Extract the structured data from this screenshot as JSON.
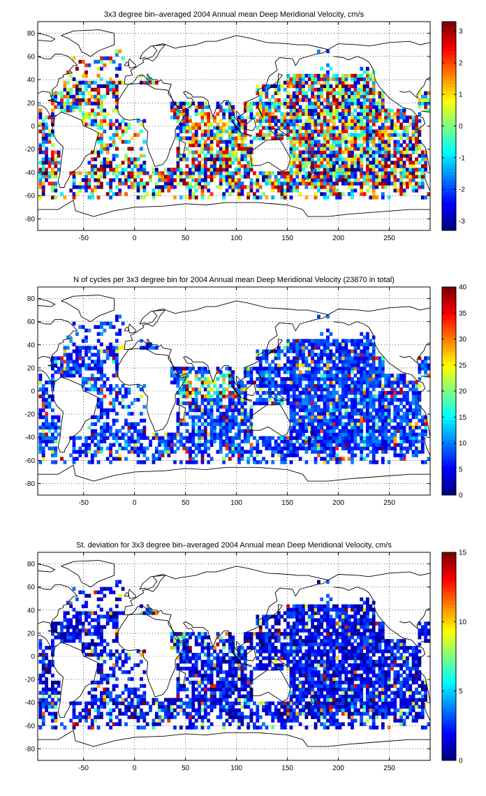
{
  "figure": {
    "background": "#ffffff"
  },
  "chart_data": [
    {
      "type": "heatmap",
      "title": "3x3 degree bin–averaged 2004 Annual mean Deep Meridional Velocity, cm/s",
      "xlim": [
        -95,
        290
      ],
      "ylim": [
        -90,
        90
      ],
      "xticks": [
        -50,
        0,
        50,
        100,
        150,
        200,
        250
      ],
      "yticks": [
        -80,
        -60,
        -40,
        -20,
        0,
        20,
        40,
        60,
        80
      ],
      "grid": true,
      "colormap": "jet",
      "colorbar": {
        "min": -3.3,
        "max": 3.3,
        "ticks": [
          -3,
          -2,
          -1,
          0,
          1,
          2,
          3
        ]
      },
      "bin_size_deg": 3,
      "field": "mean_velocity",
      "visible_value_range": [
        -3.3,
        3.3
      ]
    },
    {
      "type": "heatmap",
      "title": "N of cycles per 3x3 degree bin for 2004 Annual mean Deep Meridional Velocity (23870 in total)",
      "xlim": [
        -95,
        290
      ],
      "ylim": [
        -90,
        90
      ],
      "xticks": [
        -50,
        0,
        50,
        100,
        150,
        200,
        250
      ],
      "yticks": [
        -80,
        -60,
        -40,
        -20,
        0,
        20,
        40,
        60,
        80
      ],
      "grid": true,
      "colormap": "jet",
      "colorbar": {
        "min": 0,
        "max": 40,
        "ticks": [
          0,
          5,
          10,
          15,
          20,
          25,
          30,
          35,
          40
        ]
      },
      "bin_size_deg": 3,
      "field": "cycle_count",
      "visible_value_range": [
        0,
        40
      ]
    },
    {
      "type": "heatmap",
      "title": "St. deviation for 3x3 degree bin–averaged 2004 Annual mean Deep Meridional Velocity, cm/s",
      "xlim": [
        -95,
        290
      ],
      "ylim": [
        -90,
        90
      ],
      "xticks": [
        -50,
        0,
        50,
        100,
        150,
        200,
        250
      ],
      "yticks": [
        -80,
        -60,
        -40,
        -20,
        0,
        20,
        40,
        60,
        80
      ],
      "grid": true,
      "colormap": "jet",
      "colorbar": {
        "min": 0,
        "max": 15,
        "ticks": [
          0,
          5,
          10,
          15
        ]
      },
      "bin_size_deg": 3,
      "field": "std_dev",
      "visible_value_range": [
        0,
        15
      ]
    }
  ]
}
